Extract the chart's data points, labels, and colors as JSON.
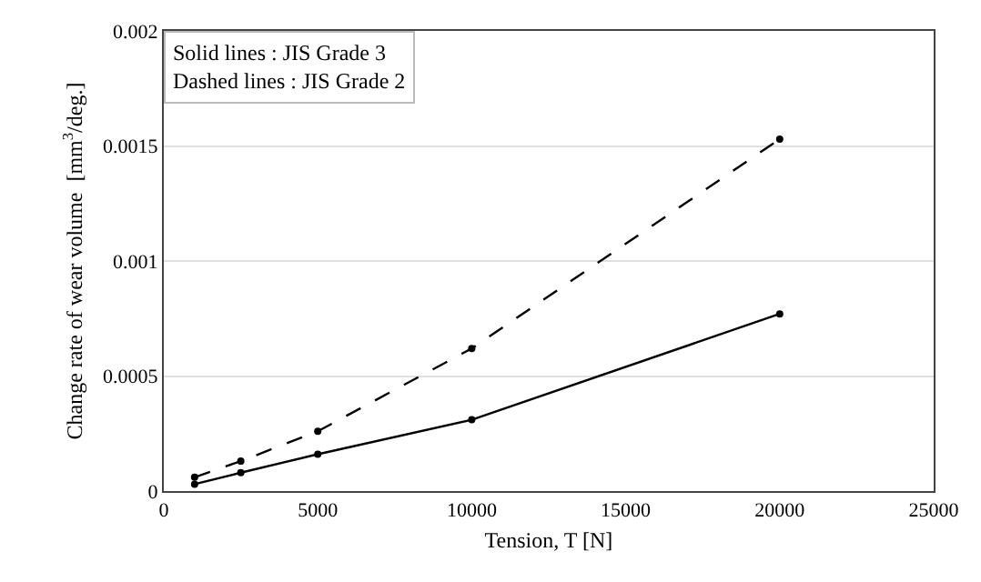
{
  "chart_data": {
    "type": "line",
    "xlabel": "Tension, T [N]",
    "ylabel": "Change rate of wear volume  [mm$^{3}$/deg.]",
    "annotations": [
      "Solid lines : JIS Grade 3",
      "Dashed lines : JIS Grade 2"
    ],
    "x": [
      1000,
      2500,
      5000,
      10000,
      20000
    ],
    "series": [
      {
        "color": "#000000",
        "line_style": "solid",
        "values": [
          3e-05,
          8e-05,
          0.00016,
          0.00031,
          0.00077
        ]
      },
      {
        "color": "#000000",
        "line_style": "dashed",
        "values": [
          6e-05,
          0.00013,
          0.00026,
          0.00062,
          0.00153
        ]
      }
    ],
    "xlim": [
      0,
      25000
    ],
    "xticks": [
      0,
      5000,
      10000,
      15000,
      20000,
      25000
    ],
    "ylim": [
      0,
      0.002
    ],
    "yticks": [
      0,
      0.0005,
      0.001,
      0.0015,
      0.002
    ],
    "grid": "y",
    "marker": "circle",
    "legend": false
  }
}
